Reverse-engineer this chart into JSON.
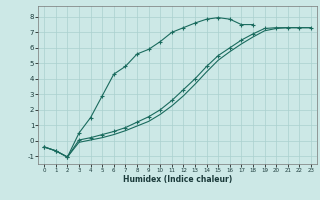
{
  "xlabel": "Humidex (Indice chaleur)",
  "background_color": "#cce8e6",
  "grid_color": "#aad0ce",
  "line_color": "#1a6b5e",
  "xlim": [
    -0.5,
    23.5
  ],
  "ylim": [
    -1.5,
    8.7
  ],
  "xticks": [
    0,
    1,
    2,
    3,
    4,
    5,
    6,
    7,
    8,
    9,
    10,
    11,
    12,
    13,
    14,
    15,
    16,
    17,
    18,
    19,
    20,
    21,
    22,
    23
  ],
  "yticks": [
    -1,
    0,
    1,
    2,
    3,
    4,
    5,
    6,
    7,
    8
  ],
  "curve1_x": [
    0,
    1,
    2,
    3,
    4,
    5,
    6,
    7,
    8,
    9,
    10,
    11,
    12,
    13,
    14,
    15,
    16,
    17,
    18
  ],
  "curve1_y": [
    -0.4,
    -0.65,
    -1.05,
    0.5,
    1.5,
    2.9,
    4.3,
    4.8,
    5.6,
    5.9,
    6.4,
    7.0,
    7.3,
    7.6,
    7.85,
    7.95,
    7.85,
    7.5,
    7.5
  ],
  "curve2_x": [
    0,
    1,
    2,
    3,
    4,
    5,
    6,
    7,
    8,
    9,
    10,
    11,
    12,
    13,
    14,
    15,
    16,
    17,
    18,
    19,
    20,
    21,
    22,
    23
  ],
  "curve2_y": [
    -0.4,
    -0.65,
    -1.05,
    0.05,
    0.2,
    0.4,
    0.6,
    0.85,
    1.2,
    1.55,
    2.0,
    2.6,
    3.3,
    4.0,
    4.8,
    5.5,
    6.0,
    6.5,
    6.9,
    7.25,
    7.3,
    7.3,
    7.3,
    7.3
  ],
  "curve3_x": [
    0,
    1,
    2,
    3,
    4,
    5,
    6,
    7,
    8,
    9,
    10,
    11,
    12,
    13,
    14,
    15,
    16,
    17,
    18,
    19,
    20,
    21,
    22,
    23
  ],
  "curve3_y": [
    -0.4,
    -0.65,
    -1.05,
    -0.1,
    0.05,
    0.2,
    0.4,
    0.65,
    0.95,
    1.25,
    1.7,
    2.25,
    2.9,
    3.65,
    4.45,
    5.2,
    5.75,
    6.25,
    6.7,
    7.1,
    7.25,
    7.3,
    7.3,
    7.3
  ]
}
